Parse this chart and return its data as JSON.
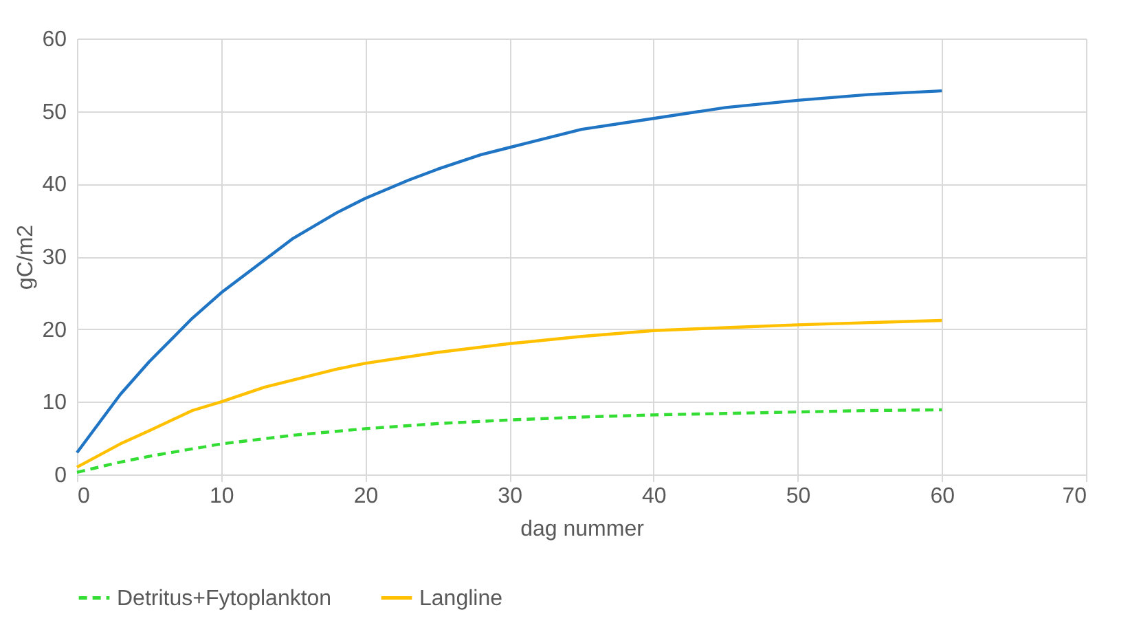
{
  "chart_data": {
    "type": "line",
    "xlabel": "dag nummer",
    "ylabel": "gC/m2",
    "xlim": [
      0,
      70
    ],
    "xticks": [
      0,
      10,
      20,
      30,
      40,
      50,
      60,
      70
    ],
    "ylim": [
      0,
      60
    ],
    "yticks": [
      0,
      10,
      20,
      30,
      40,
      50,
      60
    ],
    "grid": true,
    "legend": "bottom",
    "marker": "none",
    "series": [
      {
        "name": "Detritus+Fytoplankton",
        "color": "#33dd33",
        "line_style": "dashed",
        "x": [
          0,
          3,
          5,
          10,
          15,
          20,
          25,
          30,
          35,
          40,
          45,
          50,
          55,
          60
        ],
        "values": [
          0.3,
          1.7,
          2.5,
          4.2,
          5.4,
          6.3,
          7,
          7.5,
          7.9,
          8.2,
          8.4,
          8.6,
          8.8,
          8.9
        ]
      },
      {
        "color": "#1f74c4",
        "line_style": "solid",
        "x": [
          0,
          3,
          5,
          8,
          10,
          13,
          15,
          18,
          20,
          23,
          25,
          28,
          30,
          35,
          40,
          45,
          50,
          55,
          60
        ],
        "values": [
          3,
          11,
          15.5,
          21.5,
          25,
          29.5,
          32.5,
          36,
          38,
          40.5,
          42,
          44,
          45,
          47.5,
          49,
          50.5,
          51.5,
          52.3,
          52.8
        ]
      },
      {
        "name": "Langline",
        "color": "#ffc000",
        "line_style": "solid",
        "x": [
          0,
          3,
          5,
          8,
          10,
          13,
          15,
          18,
          20,
          25,
          30,
          35,
          40,
          45,
          50,
          55,
          60
        ],
        "values": [
          1,
          4.2,
          6,
          8.8,
          10,
          12,
          13,
          14.5,
          15.3,
          16.8,
          18,
          19,
          19.8,
          20.2,
          20.6,
          20.9,
          21.2
        ]
      }
    ]
  }
}
